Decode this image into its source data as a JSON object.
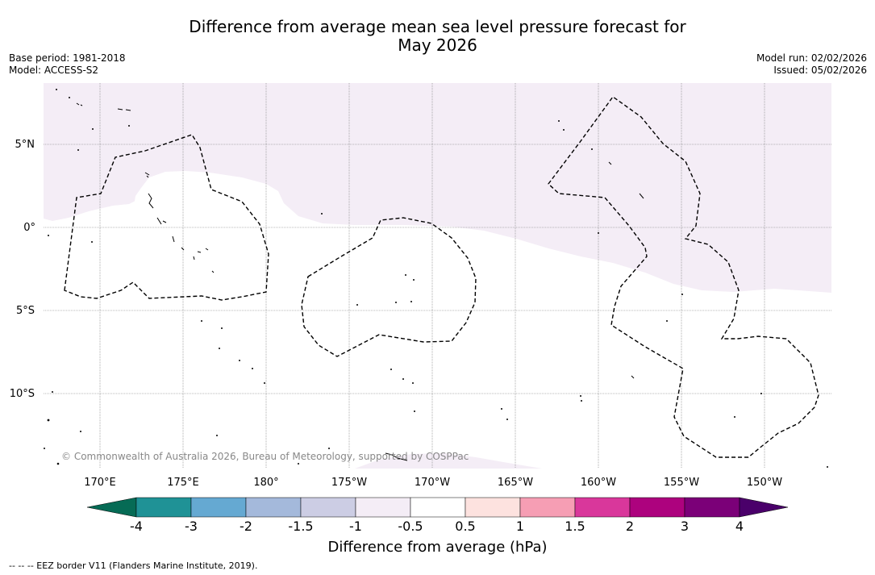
{
  "title": {
    "line1": "Difference from average mean sea level pressure forecast for",
    "line2": "May 2026"
  },
  "meta": {
    "base_period": "Base period: 1981-2018",
    "model": "Model: ACCESS-S2",
    "model_run": "Model run: 02/02/2026",
    "issued": "Issued: 05/02/2026"
  },
  "map": {
    "lat_labels": [
      "5°N",
      "0°",
      "5°S",
      "10°S"
    ],
    "lon_labels": [
      "170°E",
      "175°E",
      "180°",
      "175°W",
      "170°W",
      "165°W",
      "160°W",
      "155°W",
      "150°W"
    ],
    "anomaly_color": "#f4edf6",
    "copyright": "© Commonwealth of Australia 2026, Bureau of Meteorology, supported by COSPPac"
  },
  "colorbar": {
    "ticks": [
      "-4",
      "-3",
      "-2",
      "-1.5",
      "-1",
      "-0.5",
      "0.5",
      "1",
      "1.5",
      "2",
      "3",
      "4"
    ],
    "colors": [
      "#066b55",
      "#1f9296",
      "#65a9d2",
      "#a4b9db",
      "#cccde4",
      "#f4edf6",
      "#ffffff",
      "#fde2df",
      "#f69eb4",
      "#d9379b",
      "#ad027e",
      "#7b0078",
      "#4a006a"
    ],
    "label": "Difference from average (hPa)"
  },
  "footnote": "--  --  -- EEZ border V11 (Flanders Marine Institute, 2019)."
}
